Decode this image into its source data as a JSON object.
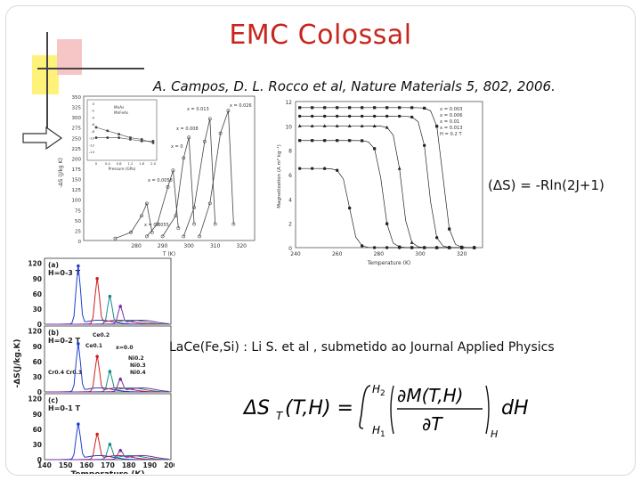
{
  "slide": {
    "title": "EMC Colossal",
    "citation": "A. Campos, D. L. Rocco et al, Nature Materials 5, 802, 2006.",
    "relation": "(ΔS) = -Rln(2J+1)",
    "subcitation": "LaCe(Fe,Si) : Li S. et al , submetido ao Journal Applied Physics"
  },
  "formula": {
    "lhs": "ΔS",
    "lhs_sub": "T",
    "lhs_args": "(T,H) =",
    "upper_limit": "H",
    "upper_sub": "2",
    "lower_limit": "H",
    "lower_sub": "1",
    "numerator": "∂M(T,H)",
    "denominator": "∂T",
    "eval_sub": "H",
    "differential": "dH"
  },
  "colors": {
    "title": "#c8251d",
    "deco_yellow": "#fff27a",
    "deco_pink": "#f6c6c6"
  },
  "chart_data": [
    {
      "type": "line",
      "id": "entropy-vs-temperature",
      "ylabel": "-ΔS (J/kg K)",
      "xlabel": "T (K)",
      "y_ticks": [
        "0",
        "25",
        "50",
        "75",
        "100",
        "125",
        "150",
        "175",
        "200",
        "225",
        "250",
        "275",
        "300",
        "325",
        "350"
      ],
      "x_ticks": [
        "280",
        "290",
        "300",
        "310",
        "320"
      ],
      "xlim": [
        260,
        325
      ],
      "ylim": [
        0,
        350
      ],
      "series": [
        {
          "values_x": [
            272,
            278,
            282,
            284,
            286
          ],
          "values_y": [
            5,
            20,
            60,
            90,
            20
          ]
        },
        {
          "values_x": [
            284,
            288,
            292,
            294,
            296
          ],
          "values_y": [
            10,
            40,
            130,
            170,
            30
          ]
        },
        {
          "values_x": [
            290,
            295,
            298,
            300,
            302
          ],
          "values_y": [
            10,
            60,
            200,
            250,
            40
          ]
        },
        {
          "values_x": [
            298,
            302,
            306,
            308,
            310
          ],
          "values_y": [
            10,
            80,
            240,
            295,
            40
          ]
        },
        {
          "values_x": [
            304,
            308,
            312,
            315,
            317
          ],
          "values_y": [
            10,
            90,
            260,
            315,
            40
          ]
        }
      ],
      "annotations": [
        "x = 0.013",
        "x = 0.026",
        "x = 0.008",
        "x = 0.0058",
        "x = 0.0055",
        "x = 0"
      ],
      "inset": {
        "legend": [
          "MnAs",
          "MnFeAs"
        ],
        "xlabel": "Pressure (GPa)",
        "x_ticks": [
          "0",
          "0.4",
          "0.8",
          "1.2",
          "1.6",
          "2.0"
        ],
        "y_ticks": [
          "0",
          "-2",
          "-4",
          "-6",
          "-8",
          "-10",
          "-12",
          "-14"
        ],
        "series": [
          {
            "name": "MnAs",
            "x": [
              0,
              0.4,
              0.8,
              1.2,
              1.6,
              2.0
            ],
            "y": [
              -7,
              -8,
              -9,
              -10,
              -10.5,
              -11.5
            ]
          },
          {
            "name": "MnFeAs",
            "x": [
              0,
              0.4,
              0.8,
              1.2,
              1.6,
              2.0
            ],
            "y": [
              -10,
              -10,
              -10,
              -10.5,
              -11,
              -11
            ]
          }
        ]
      }
    },
    {
      "type": "line",
      "id": "magnetization-vs-temperature",
      "ylabel": "Magnetization (A m² kg⁻¹)",
      "xlabel": "Temperature (K)",
      "x_ticks": [
        "240",
        "260",
        "280",
        "300",
        "320"
      ],
      "y_ticks": [
        "0",
        "2",
        "4",
        "6",
        "8",
        "10",
        "12"
      ],
      "xlim": [
        240,
        330
      ],
      "ylim": [
        0,
        12
      ],
      "legend": [
        "x = 0.003",
        "x = 0.006",
        "x = 0.01",
        "x = 0.013"
      ],
      "field": "H = 0.2 T",
      "series": [
        {
          "name": "x = 0.003",
          "step_at": 311,
          "high": 11.5
        },
        {
          "name": "x = 0.006",
          "step_at": 304,
          "high": 10.8
        },
        {
          "name": "x = 0.01",
          "step_at": 291,
          "high": 10.0
        },
        {
          "name": "x = 0.013",
          "step_at": 282,
          "high": 8.8
        },
        {
          "name": "",
          "step_at": 266,
          "high": 6.5
        }
      ]
    },
    {
      "type": "line",
      "id": "lacefesi-entropy",
      "ylabel": "-ΔS(J/kg.K)",
      "xlabel": "Temperature (K)",
      "x_ticks": [
        "140",
        "150",
        "160",
        "170",
        "180",
        "190",
        "200"
      ],
      "xlim": [
        140,
        200
      ],
      "panels": [
        {
          "label": "(a)",
          "field": "H=0-3 T",
          "y_ticks": [
            "0",
            "30",
            "60",
            "90",
            "120"
          ],
          "peaks": [
            {
              "x": 156,
              "y": 115
            },
            {
              "x": 165,
              "y": 90
            },
            {
              "x": 171,
              "y": 55
            },
            {
              "x": 176,
              "y": 35
            }
          ]
        },
        {
          "label": "(b)",
          "field": "H=0-2 T",
          "y_ticks": [
            "0",
            "30",
            "60",
            "90",
            "120"
          ],
          "peaks": [
            {
              "x": 156,
              "y": 95
            },
            {
              "x": 165,
              "y": 70
            },
            {
              "x": 171,
              "y": 40
            },
            {
              "x": 176,
              "y": 25
            }
          ],
          "annotations": [
            "Ce0.2",
            "Ce0.1",
            "x=0.0",
            "Ni0.2",
            "Ni0.3",
            "Ni0.4",
            "Cr0.4",
            "Cr0.3"
          ]
        },
        {
          "label": "(c)",
          "field": "H=0-1 T",
          "y_ticks": [
            "0",
            "30",
            "60",
            "90",
            "120"
          ],
          "peaks": [
            {
              "x": 156,
              "y": 70
            },
            {
              "x": 165,
              "y": 50
            },
            {
              "x": 171,
              "y": 30
            },
            {
              "x": 176,
              "y": 18
            }
          ]
        }
      ]
    }
  ]
}
